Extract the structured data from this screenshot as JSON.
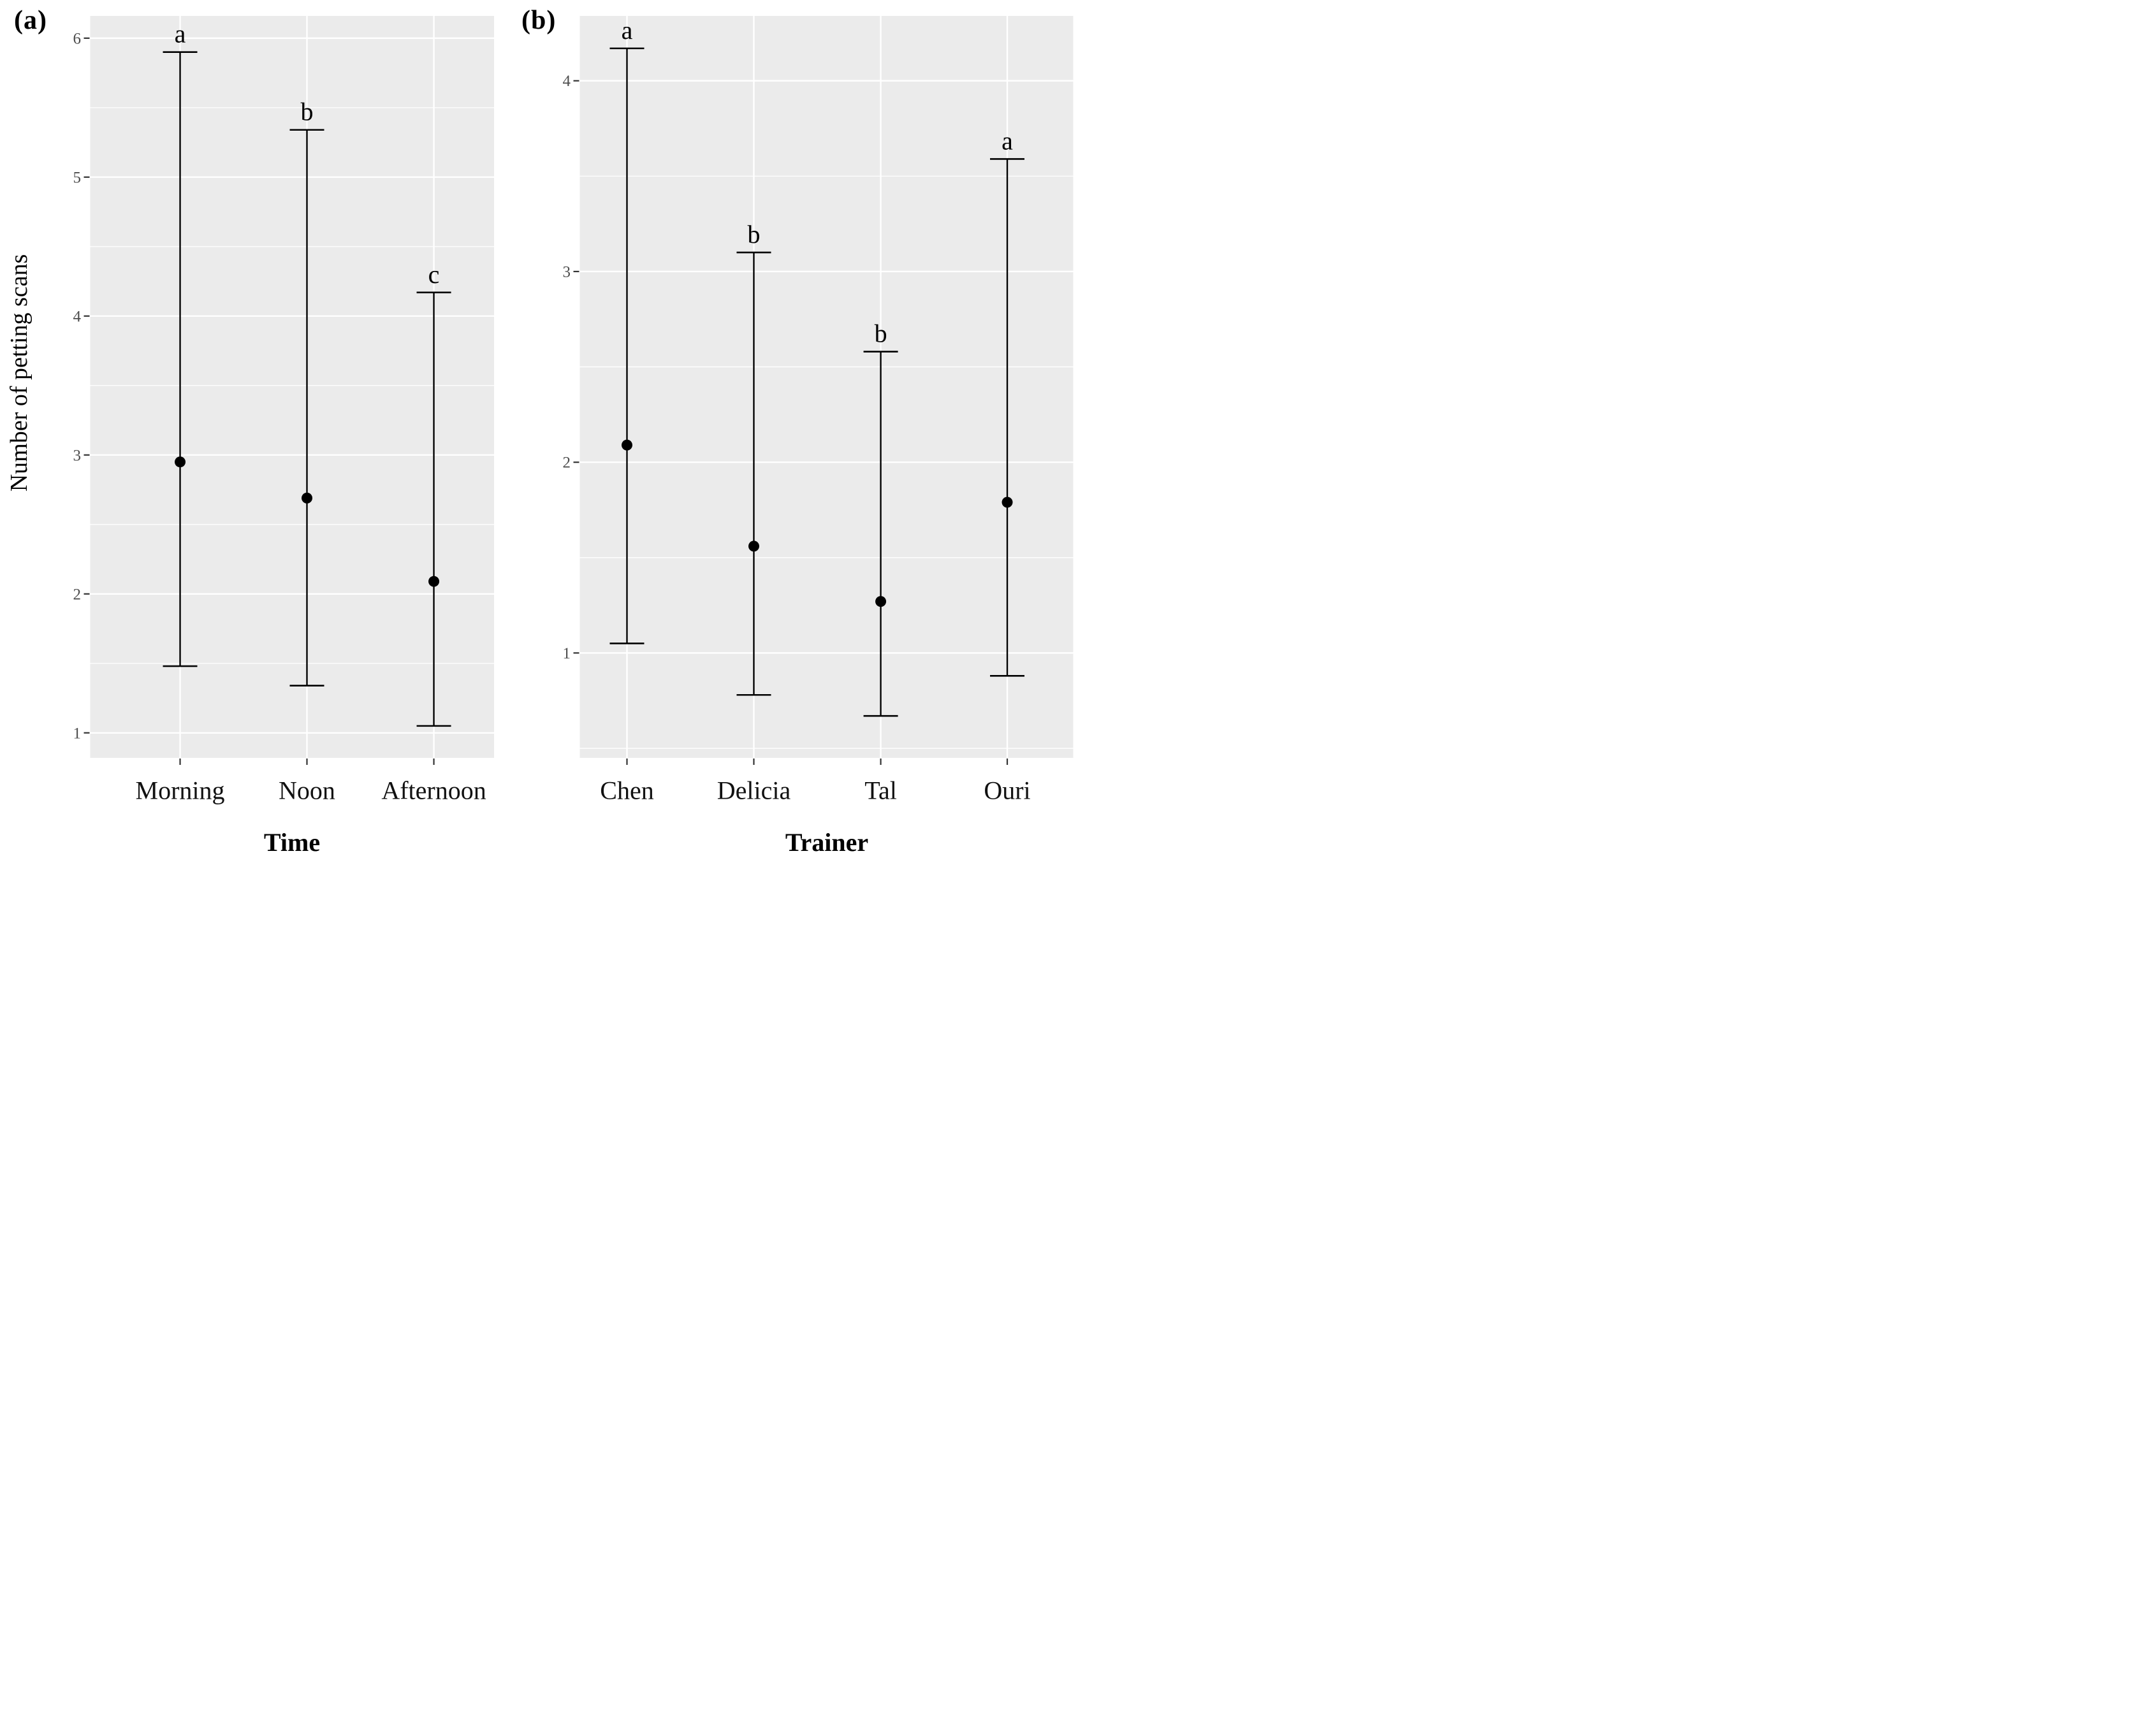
{
  "figure": {
    "background": "#FFFFFF",
    "y_axis_title": "Number of petting scans"
  },
  "chart_data": [
    {
      "type": "scatter",
      "subtype": "mean-with-error-bars",
      "panel_tag": "(a)",
      "xlabel": "Time",
      "ylabel": "Number of petting scans",
      "categories": [
        "Morning",
        "Noon",
        "Afternoon"
      ],
      "series": [
        {
          "name": "mean",
          "values": [
            2.95,
            2.69,
            2.09
          ]
        },
        {
          "name": "lower",
          "values": [
            1.48,
            1.34,
            1.05
          ]
        },
        {
          "name": "upper",
          "values": [
            5.9,
            5.34,
            4.17
          ]
        }
      ],
      "sig_letters": [
        "a",
        "b",
        "c"
      ],
      "yticks": [
        1,
        2,
        3,
        4,
        5,
        6
      ],
      "minor_gridlines": [
        1.5,
        2.5,
        3.5,
        4.5,
        5.5
      ],
      "ylim": [
        0.82,
        6.16
      ],
      "grid": true,
      "legend": "none"
    },
    {
      "type": "scatter",
      "subtype": "mean-with-error-bars",
      "panel_tag": "(b)",
      "xlabel": "Trainer",
      "ylabel": "",
      "categories": [
        "Chen",
        "Delicia",
        "Tal",
        "Ouri"
      ],
      "series": [
        {
          "name": "mean",
          "values": [
            2.09,
            1.56,
            1.27,
            1.79
          ]
        },
        {
          "name": "lower",
          "values": [
            1.05,
            0.78,
            0.67,
            0.88
          ]
        },
        {
          "name": "upper",
          "values": [
            4.17,
            3.1,
            2.58,
            3.59
          ]
        }
      ],
      "sig_letters": [
        "a",
        "b",
        "b",
        "a"
      ],
      "yticks": [
        1,
        2,
        3,
        4
      ],
      "minor_gridlines": [
        0.5,
        1.5,
        2.5,
        3.5
      ],
      "ylim": [
        0.45,
        4.34
      ],
      "grid": true,
      "legend": "none"
    }
  ],
  "style": {
    "panel_background": "#EBEBEB",
    "gridline_color": "#FFFFFF",
    "data_color": "#000000",
    "tick_mark_color": "#333333",
    "y_tick_label_color": "#4D4D4D",
    "category_label_color": "#111111",
    "title_color": "#000000"
  }
}
